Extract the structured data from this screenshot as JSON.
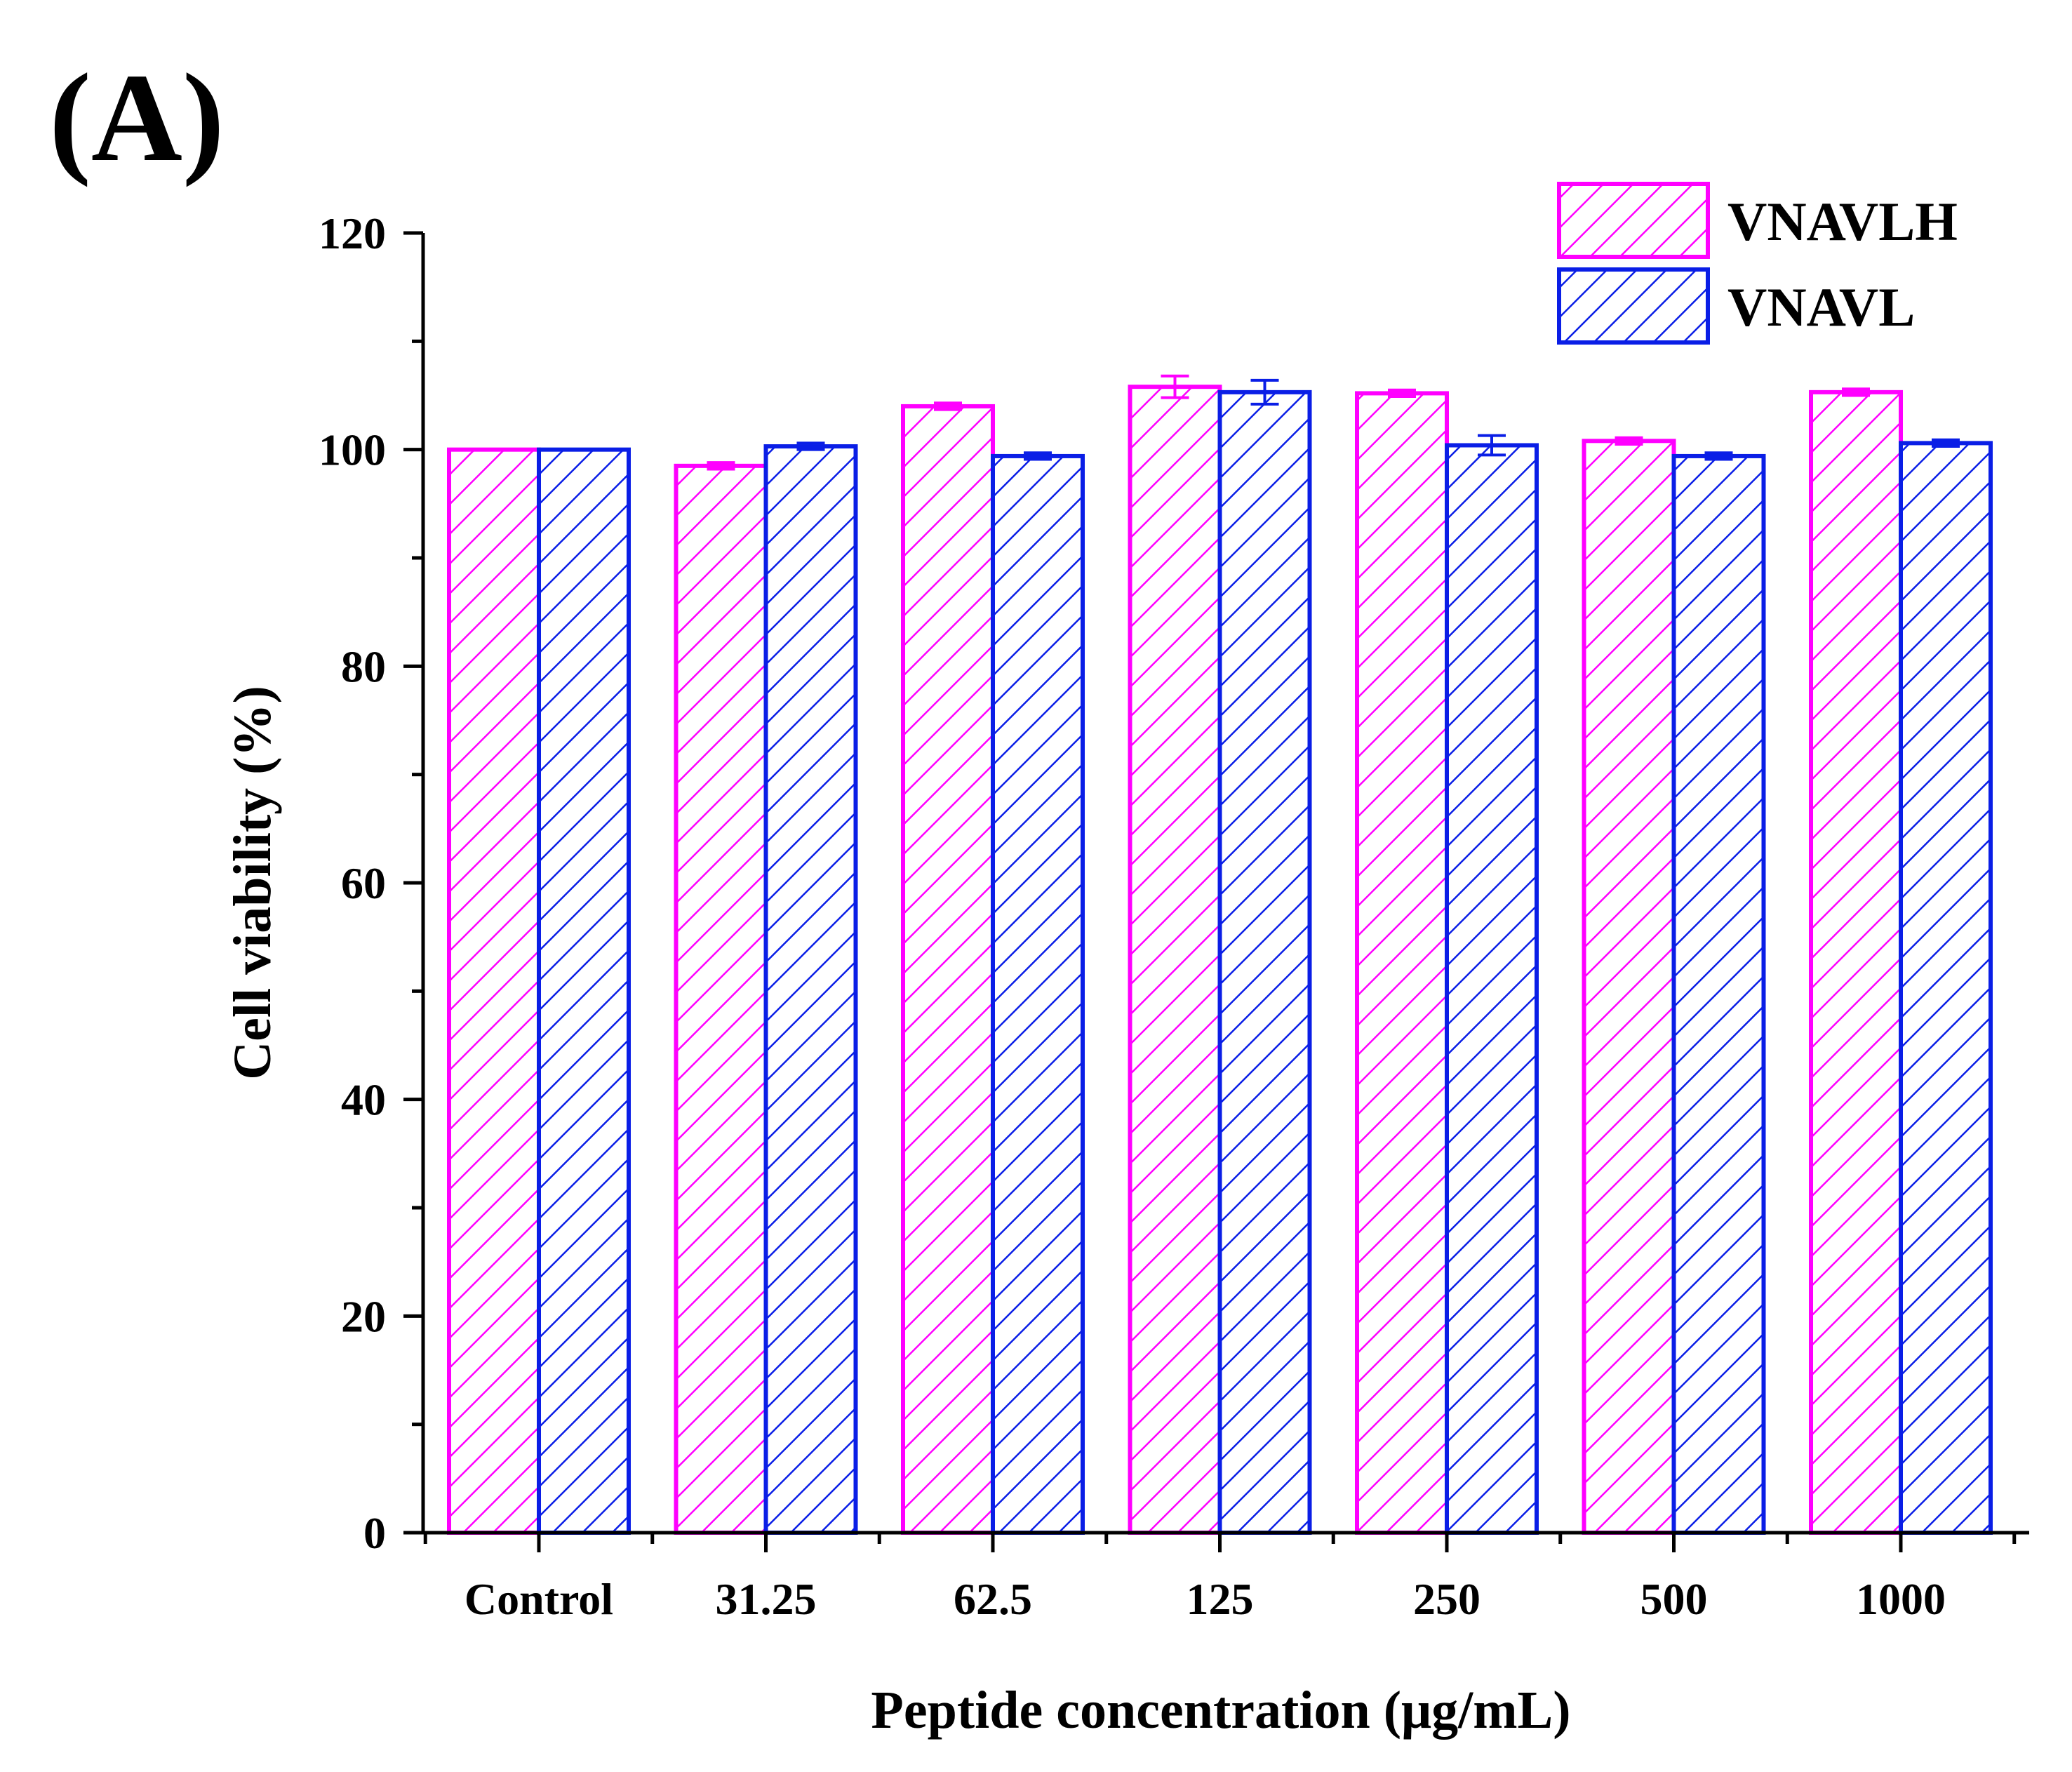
{
  "panel_label": "(A)",
  "chart_data": {
    "type": "bar",
    "title": "",
    "xlabel": "Peptide concentration (μg/mL)",
    "ylabel": "Cell viability (%)",
    "ylim": [
      0,
      120
    ],
    "yticks": [
      0,
      20,
      40,
      60,
      80,
      100,
      120
    ],
    "categories": [
      "Control",
      "31.25",
      "62.5",
      "125",
      "250",
      "500",
      "1000"
    ],
    "legend_position": "top-right",
    "grid": false,
    "pattern": "diagonal-hatch",
    "series": [
      {
        "name": "VNAVLH",
        "color": "#ff00ff",
        "values": [
          100.0,
          98.5,
          104.0,
          105.8,
          105.2,
          100.8,
          105.3
        ],
        "errors": [
          0.0,
          0.3,
          0.3,
          1.0,
          0.3,
          0.3,
          0.3
        ]
      },
      {
        "name": "VNAVL",
        "color": "#0a1ee6",
        "values": [
          100.0,
          100.3,
          99.4,
          105.3,
          100.4,
          99.4,
          100.6
        ],
        "errors": [
          0.0,
          0.3,
          0.3,
          1.1,
          0.9,
          0.3,
          0.3
        ]
      }
    ]
  }
}
